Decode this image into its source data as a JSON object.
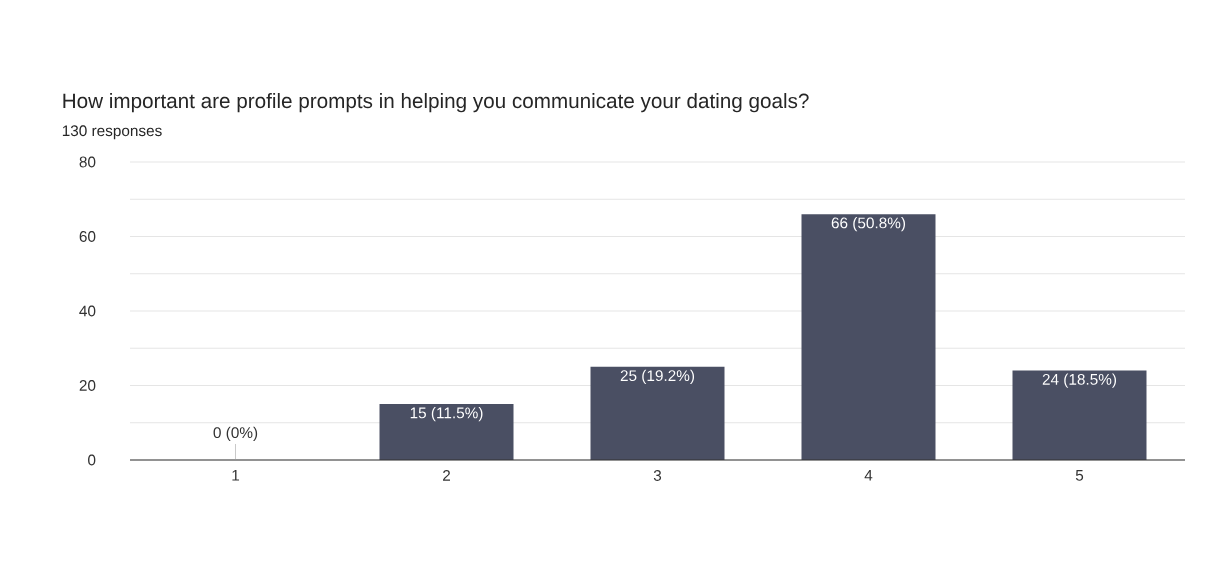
{
  "chart_data": {
    "type": "bar",
    "title": "How important are profile prompts in helping you communicate your dating goals?",
    "subtitle": "130 responses",
    "categories": [
      "1",
      "2",
      "3",
      "4",
      "5"
    ],
    "values": [
      0,
      15,
      25,
      66,
      24
    ],
    "value_labels": [
      "0 (0%)",
      "15 (11.5%)",
      "25 (19.2%)",
      "66 (50.8%)",
      "24 (18.5%)"
    ],
    "color": "#4a4f63",
    "ylim": [
      0,
      80
    ],
    "yticks": [
      0,
      {
        "value": 10,
        "label": null
      },
      20,
      {
        "value": 30,
        "label": null
      },
      40,
      {
        "value": 50,
        "label": null
      },
      60,
      {
        "value": 70,
        "label": null
      },
      80
    ],
    "grid": "y"
  }
}
